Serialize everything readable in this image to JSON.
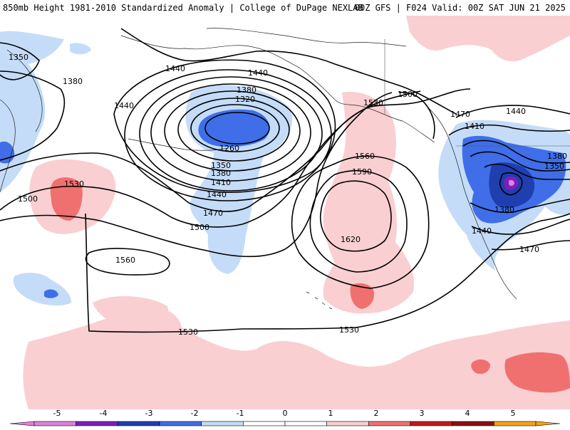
{
  "header": {
    "title": "850mb Height 1981-2010 Standardized Anomaly | College of DuPage NEXLAB",
    "run": "00Z GFS | F024 Valid: 00Z SAT JUN 21 2025"
  },
  "colors": {
    "neg5": "#e080e0",
    "neg4": "#7a1fb8",
    "neg3": "#1f3fb0",
    "neg2": "#3f6ee8",
    "neg1": "#c4dcf7",
    "pos1": "#f9cfd1",
    "pos2": "#f07070",
    "pos3": "#c21a1a",
    "pos4": "#8b1010",
    "pos5": "#f5a21a"
  },
  "colorbar": {
    "ticks": [
      "-5",
      "-4",
      "-3",
      "-2",
      "-1",
      "0",
      "1",
      "2",
      "3",
      "4",
      "5"
    ]
  },
  "contour_labels": [
    "1350",
    "1380",
    "1440",
    "1440",
    "1440",
    "1380",
    "1320",
    "1260",
    "1350",
    "1380",
    "1410",
    "1440",
    "1470",
    "1500",
    "1530",
    "1500",
    "1560",
    "1530",
    "1530",
    "1530",
    "1560",
    "1590",
    "1620",
    "1500",
    "1470",
    "1440",
    "1410",
    "1380",
    "1350",
    "1380",
    "1440",
    "1470"
  ]
}
